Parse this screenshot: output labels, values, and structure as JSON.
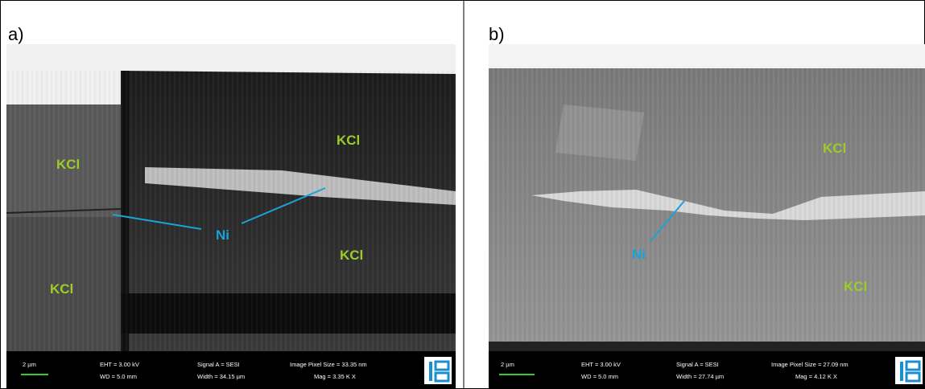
{
  "panels": [
    {
      "label": "a)",
      "annotations": [
        "KCl",
        "KCl",
        "KCl",
        "Ni"
      ],
      "info": {
        "scale": "2 µm",
        "eht": "EHT = 3.00 kV",
        "wd": "WD = 5.0 mm",
        "signal": "Signal A = SESI",
        "width": "Width = 34.15 µm",
        "pixel_size": "Image Pixel Size = 33.35 nm",
        "mag": "Mag = 3.35 K X"
      }
    },
    {
      "label": "b)",
      "annotations": [
        "KCl",
        "KCl",
        "Ni"
      ],
      "info": {
        "scale": "2 µm",
        "eht": "EHT = 3.00 kV",
        "wd": "WD = 5.0 mm",
        "signal": "Signal A = SESI",
        "width": "Width = 27.74 µm",
        "pixel_size": "Image Pixel Size = 27.09 nm",
        "mag": "Mag = 4.12 K X"
      }
    }
  ]
}
